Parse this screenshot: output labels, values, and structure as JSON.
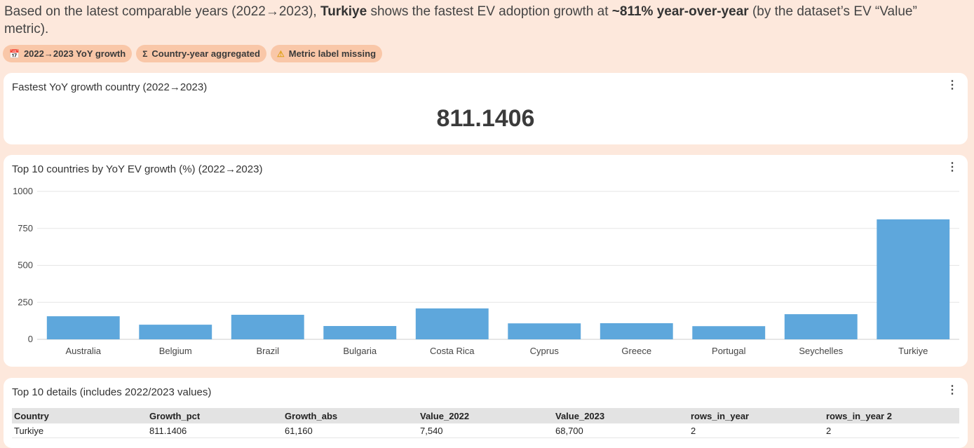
{
  "headline": {
    "pre": "Based on the latest comparable years (2022→2023), ",
    "country": "Turkiye",
    "mid": " shows the fastest EV adoption growth at ",
    "growth": "~811% year-over-year",
    "post": " (by the dataset’s EV “Value” metric)."
  },
  "chips": [
    {
      "icon": "calendar-icon",
      "glyph": "📅",
      "label": "2022→2023 YoY growth"
    },
    {
      "icon": "sigma-icon",
      "glyph": "Σ",
      "label": "Country-year aggregated"
    },
    {
      "icon": "warning-icon",
      "glyph": "⚠",
      "label": "Metric label missing"
    }
  ],
  "kpi_card": {
    "title": "Fastest YoY growth country (2022→2023)",
    "value": "811.1406"
  },
  "chart_card": {
    "title": "Top 10 countries by YoY EV growth (%) (2022→2023)"
  },
  "chart_data": {
    "type": "bar",
    "title": "Top 10 countries by YoY EV growth (%) (2022→2023)",
    "categories": [
      "Australia",
      "Belgium",
      "Brazil",
      "Bulgaria",
      "Costa Rica",
      "Cyprus",
      "Greece",
      "Portugal",
      "Seychelles",
      "Turkiye"
    ],
    "values": [
      156,
      99,
      166,
      90,
      209,
      108,
      109,
      89,
      170,
      811.1406
    ],
    "ylim": [
      0,
      1000
    ],
    "yticks": [
      0,
      250,
      500,
      750,
      1000
    ],
    "grid": true,
    "color": "#5ea7dc"
  },
  "table_card": {
    "title": "Top 10 details (includes 2022/2023 values)",
    "columns": [
      "Country",
      "Growth_pct",
      "Growth_abs",
      "Value_2022",
      "Value_2023",
      "rows_in_year",
      "rows_in_year 2"
    ],
    "rows": [
      [
        "Turkiye",
        "811.1406",
        "61,160",
        "7,540",
        "68,700",
        "2",
        "2"
      ]
    ]
  },
  "colors": {
    "background": "#fde8dc",
    "chip": "#f9c7a8",
    "bar": "#5ea7dc"
  }
}
